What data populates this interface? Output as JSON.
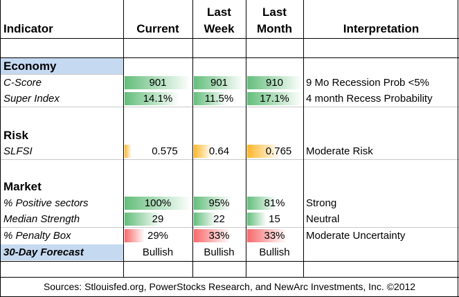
{
  "headers": {
    "indicator": "Indicator",
    "current": "Current",
    "last_week_1": "Last",
    "last_week_2": "Week",
    "last_month_1": "Last",
    "last_month_2": "Month",
    "interpretation": "Interpretation"
  },
  "sections": {
    "economy": "Economy",
    "risk": "Risk",
    "market": "Market"
  },
  "rows": {
    "cscore": {
      "label": "C-Score",
      "current": "901",
      "last_week": "901",
      "last_month": "910",
      "interpretation": "9 Mo Recession Prob <5%"
    },
    "super_index": {
      "label": "Super Index",
      "current": "14.1%",
      "last_week": "11.5%",
      "last_month": "17.1%",
      "interpretation": "4 month Recess Probability"
    },
    "slfsi": {
      "label": "SLFSI",
      "current": "0.575",
      "last_week": "0.64",
      "last_month": "0.765",
      "interpretation": "Moderate Risk"
    },
    "positive_sectors": {
      "label": "% Positive sectors",
      "current": "100%",
      "last_week": "95%",
      "last_month": "81%",
      "interpretation": "Strong"
    },
    "median_strength": {
      "label": "Median Strength",
      "current": "29",
      "last_week": "22",
      "last_month": "15",
      "interpretation": "Neutral"
    },
    "penalty_box": {
      "label": "% Penalty Box",
      "current": "29%",
      "last_week": "33%",
      "last_month": "33%",
      "interpretation": "Moderate Uncertainty"
    },
    "forecast": {
      "label": "30-Day Forecast",
      "current": "Bullish",
      "last_week": "Bullish",
      "last_month": "Bullish",
      "interpretation": ""
    }
  },
  "bar_fill_fractions": {
    "cscore": [
      0.99,
      0.99,
      1.0
    ],
    "super_index": [
      0.82,
      0.67,
      1.0
    ],
    "slfsi": [
      0.1,
      0.35,
      0.6
    ],
    "positive_sectors": [
      1.0,
      0.72,
      0.55
    ],
    "median_strength": [
      0.55,
      0.45,
      0.35
    ],
    "penalty_box": [
      0.3,
      0.72,
      0.72
    ]
  },
  "colors": {
    "green_bar": "#63be7b",
    "orange_bar": "#ffb628",
    "red_bar": "#f8696b",
    "label_shade": "#c5d9f1"
  },
  "footer": "Sources: Stlouisfed.org, PowerStocks Research, and NewArc Investments, Inc. ©2012"
}
